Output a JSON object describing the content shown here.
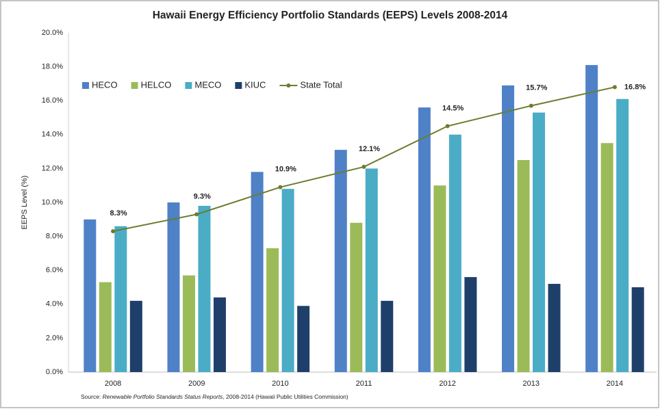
{
  "chart_data": {
    "type": "bar",
    "title": "Hawaii Energy Efficiency Portfolio Standards (EEPS) Levels 2008-2014",
    "y_label": "EEPS Level (%)",
    "source": {
      "prefix": "Source:",
      "title": "Renewable Portfolio Standards Status Reports",
      "rest": ", 2008-2014 (Hawaii Public Utilities Commission)"
    },
    "categories": [
      "2008",
      "2009",
      "2010",
      "2011",
      "2012",
      "2013",
      "2014"
    ],
    "series": [
      {
        "name": "HECO",
        "color": "#4f81c7",
        "values": [
          9.0,
          10.0,
          11.8,
          13.1,
          15.6,
          16.9,
          18.1
        ]
      },
      {
        "name": "HELCO",
        "color": "#9bbb59",
        "values": [
          5.3,
          5.7,
          7.3,
          8.8,
          11.0,
          12.5,
          13.5
        ]
      },
      {
        "name": "MECO",
        "color": "#4bacc6",
        "values": [
          8.6,
          9.8,
          10.8,
          12.0,
          14.0,
          15.3,
          16.1
        ]
      },
      {
        "name": "KIUC",
        "color": "#1f3f6b",
        "values": [
          4.2,
          4.4,
          3.9,
          4.2,
          5.6,
          5.2,
          5.0
        ]
      },
      {
        "name": "State Total",
        "type": "line",
        "color": "#6b7d2e",
        "values": [
          8.3,
          9.3,
          10.9,
          12.1,
          14.5,
          15.7,
          16.8
        ],
        "value_labels": [
          "8.3%",
          "9.3%",
          "10.9%",
          "12.1%",
          "14.5%",
          "15.7%",
          "16.8%"
        ]
      }
    ],
    "ylim": [
      0,
      20
    ],
    "yticks": [
      {
        "value": 0,
        "label": "0.0%"
      },
      {
        "value": 2,
        "label": "2.0%"
      },
      {
        "value": 4,
        "label": "4.0%"
      },
      {
        "value": 6,
        "label": "6.0%"
      },
      {
        "value": 8,
        "label": "8.0%"
      },
      {
        "value": 10,
        "label": "10.0%"
      },
      {
        "value": 12,
        "label": "12.0%"
      },
      {
        "value": 14,
        "label": "14.0%"
      },
      {
        "value": 16,
        "label": "16.0%"
      },
      {
        "value": 18,
        "label": "18.0%"
      },
      {
        "value": 20,
        "label": "20.0%"
      }
    ],
    "grid": false,
    "legend": "top-left"
  }
}
